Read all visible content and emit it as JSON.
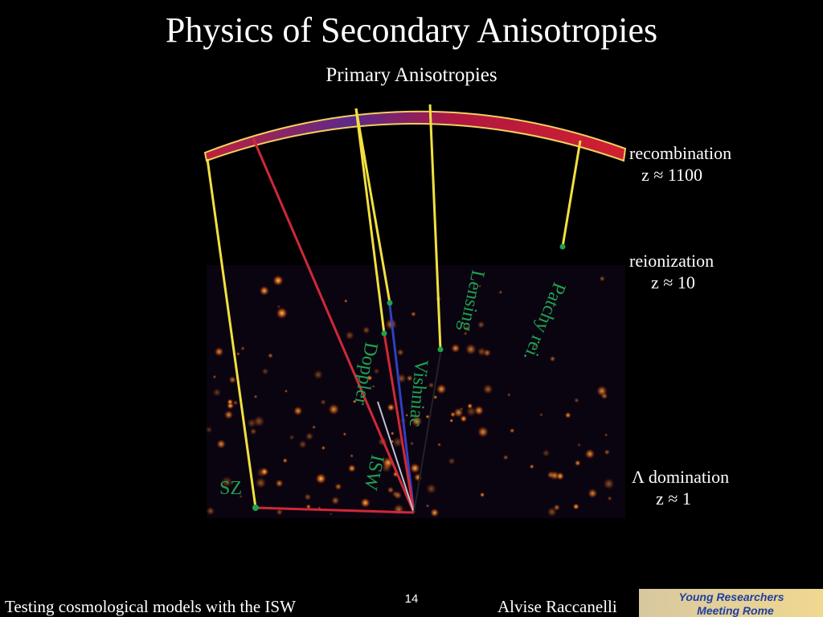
{
  "header": {
    "title": "Physics of Secondary Anisotropies",
    "subtitle": "Primary Anisotropies"
  },
  "epochs": [
    {
      "name": "recombination",
      "redshift": "z ≈ 1100"
    },
    {
      "name": "reionization",
      "redshift": "z ≈ 10"
    },
    {
      "name": "Λ domination",
      "redshift": "z ≈ 1"
    }
  ],
  "effects": {
    "sz": "SZ",
    "isw": "ISW",
    "doppler": "Doppler",
    "vishniac": "Vishniac",
    "lensing": "Lensing",
    "patchy": "Patchy rei."
  },
  "footer": {
    "talk": "Testing cosmological models with the ISW",
    "page": "14",
    "author": "Alvise Raccanelli",
    "logo_line1": "Young Researchers",
    "logo_line2": "Meeting Rome"
  }
}
